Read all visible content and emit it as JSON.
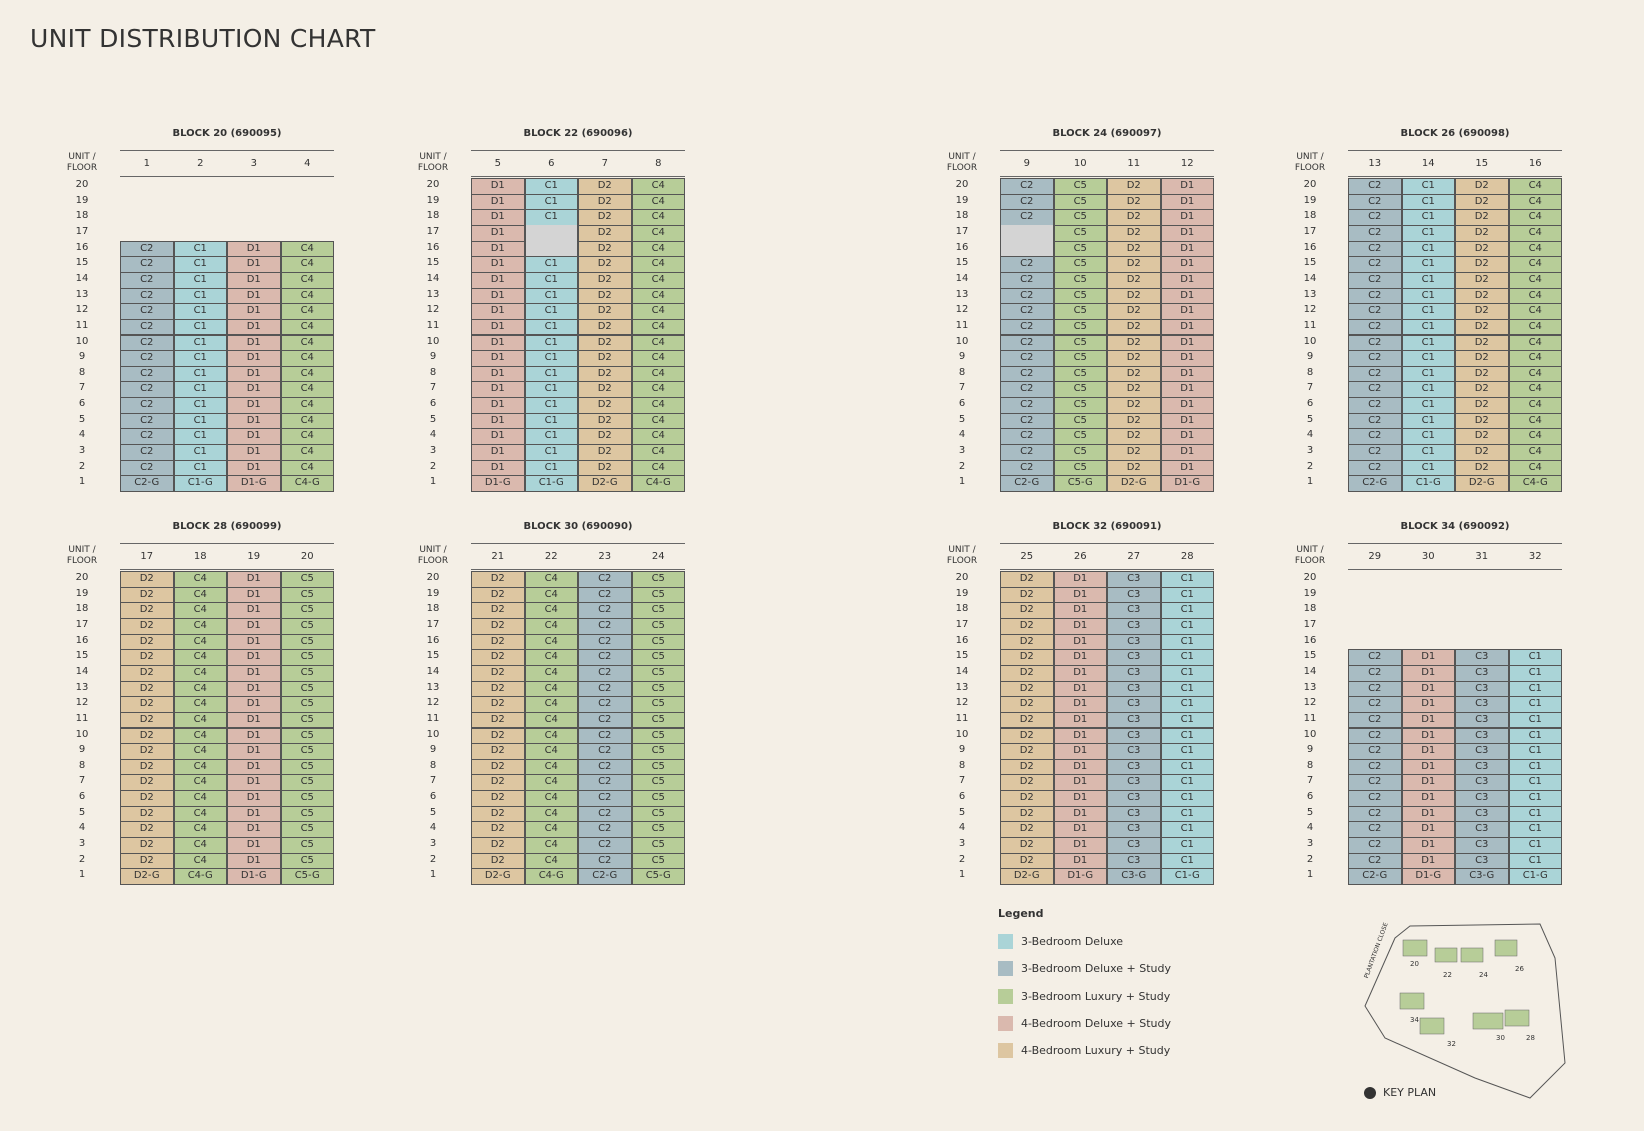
{
  "title": "UNIT DISTRIBUTION CHART",
  "unit_floor_header": "UNIT / FLOOR",
  "blocks": [
    {
      "title": "BLOCK 20 (690095)",
      "units": [
        1,
        2,
        3,
        4
      ],
      "floors": [
        20,
        19,
        18,
        17,
        16,
        15,
        14,
        13,
        12,
        11,
        10,
        9,
        8,
        7,
        6,
        5,
        4,
        3,
        2,
        1
      ],
      "rows": [
        null,
        null,
        null,
        null,
        [
          "C2",
          "C1",
          "D1",
          "C4"
        ],
        [
          "C2",
          "C1",
          "D1",
          "C4"
        ],
        [
          "C2",
          "C1",
          "D1",
          "C4"
        ],
        [
          "C2",
          "C1",
          "D1",
          "C4"
        ],
        [
          "C2",
          "C1",
          "D1",
          "C4"
        ],
        [
          "C2",
          "C1",
          "D1",
          "C4"
        ],
        [
          "C2",
          "C1",
          "D1",
          "C4"
        ],
        [
          "C2",
          "C1",
          "D1",
          "C4"
        ],
        [
          "C2",
          "C1",
          "D1",
          "C4"
        ],
        [
          "C2",
          "C1",
          "D1",
          "C4"
        ],
        [
          "C2",
          "C1",
          "D1",
          "C4"
        ],
        [
          "C2",
          "C1",
          "D1",
          "C4"
        ],
        [
          "C2",
          "C1",
          "D1",
          "C4"
        ],
        [
          "C2",
          "C1",
          "D1",
          "C4"
        ],
        [
          "C2",
          "C1",
          "D1",
          "C4"
        ],
        [
          "C2-G",
          "C1-G",
          "D1-G",
          "C4-G"
        ]
      ]
    },
    {
      "title": "BLOCK 22 (690096)",
      "units": [
        5,
        6,
        7,
        8
      ],
      "floors": [
        20,
        19,
        18,
        17,
        16,
        15,
        14,
        13,
        12,
        11,
        10,
        9,
        8,
        7,
        6,
        5,
        4,
        3,
        2,
        1
      ],
      "rows": [
        [
          "D1",
          "C1",
          "D2",
          "C4"
        ],
        [
          "D1",
          "C1",
          "D2",
          "C4"
        ],
        [
          "D1",
          "C1",
          "D2",
          "C4"
        ],
        [
          "D1",
          null,
          "D2",
          "C4"
        ],
        [
          "D1",
          null,
          "D2",
          "C4"
        ],
        [
          "D1",
          "C1",
          "D2",
          "C4"
        ],
        [
          "D1",
          "C1",
          "D2",
          "C4"
        ],
        [
          "D1",
          "C1",
          "D2",
          "C4"
        ],
        [
          "D1",
          "C1",
          "D2",
          "C4"
        ],
        [
          "D1",
          "C1",
          "D2",
          "C4"
        ],
        [
          "D1",
          "C1",
          "D2",
          "C4"
        ],
        [
          "D1",
          "C1",
          "D2",
          "C4"
        ],
        [
          "D1",
          "C1",
          "D2",
          "C4"
        ],
        [
          "D1",
          "C1",
          "D2",
          "C4"
        ],
        [
          "D1",
          "C1",
          "D2",
          "C4"
        ],
        [
          "D1",
          "C1",
          "D2",
          "C4"
        ],
        [
          "D1",
          "C1",
          "D2",
          "C4"
        ],
        [
          "D1",
          "C1",
          "D2",
          "C4"
        ],
        [
          "D1",
          "C1",
          "D2",
          "C4"
        ],
        [
          "D1-G",
          "C1-G",
          "D2-G",
          "C4-G"
        ]
      ]
    },
    {
      "title": "BLOCK 24 (690097)",
      "units": [
        9,
        10,
        11,
        12
      ],
      "floors": [
        20,
        19,
        18,
        17,
        16,
        15,
        14,
        13,
        12,
        11,
        10,
        9,
        8,
        7,
        6,
        5,
        4,
        3,
        2,
        1
      ],
      "rows": [
        [
          "C2",
          "C5",
          "D2",
          "D1"
        ],
        [
          "C2",
          "C5",
          "D2",
          "D1"
        ],
        [
          "C2",
          "C5",
          "D2",
          "D1"
        ],
        [
          null,
          "C5",
          "D2",
          "D1"
        ],
        [
          null,
          "C5",
          "D2",
          "D1"
        ],
        [
          "C2",
          "C5",
          "D2",
          "D1"
        ],
        [
          "C2",
          "C5",
          "D2",
          "D1"
        ],
        [
          "C2",
          "C5",
          "D2",
          "D1"
        ],
        [
          "C2",
          "C5",
          "D2",
          "D1"
        ],
        [
          "C2",
          "C5",
          "D2",
          "D1"
        ],
        [
          "C2",
          "C5",
          "D2",
          "D1"
        ],
        [
          "C2",
          "C5",
          "D2",
          "D1"
        ],
        [
          "C2",
          "C5",
          "D2",
          "D1"
        ],
        [
          "C2",
          "C5",
          "D2",
          "D1"
        ],
        [
          "C2",
          "C5",
          "D2",
          "D1"
        ],
        [
          "C2",
          "C5",
          "D2",
          "D1"
        ],
        [
          "C2",
          "C5",
          "D2",
          "D1"
        ],
        [
          "C2",
          "C5",
          "D2",
          "D1"
        ],
        [
          "C2",
          "C5",
          "D2",
          "D1"
        ],
        [
          "C2-G",
          "C5-G",
          "D2-G",
          "D1-G"
        ]
      ]
    },
    {
      "title": "BLOCK 26 (690098)",
      "units": [
        13,
        14,
        15,
        16
      ],
      "floors": [
        20,
        19,
        18,
        17,
        16,
        15,
        14,
        13,
        12,
        11,
        10,
        9,
        8,
        7,
        6,
        5,
        4,
        3,
        2,
        1
      ],
      "rows": [
        [
          "C2",
          "C1",
          "D2",
          "C4"
        ],
        [
          "C2",
          "C1",
          "D2",
          "C4"
        ],
        [
          "C2",
          "C1",
          "D2",
          "C4"
        ],
        [
          "C2",
          "C1",
          "D2",
          "C4"
        ],
        [
          "C2",
          "C1",
          "D2",
          "C4"
        ],
        [
          "C2",
          "C1",
          "D2",
          "C4"
        ],
        [
          "C2",
          "C1",
          "D2",
          "C4"
        ],
        [
          "C2",
          "C1",
          "D2",
          "C4"
        ],
        [
          "C2",
          "C1",
          "D2",
          "C4"
        ],
        [
          "C2",
          "C1",
          "D2",
          "C4"
        ],
        [
          "C2",
          "C1",
          "D2",
          "C4"
        ],
        [
          "C2",
          "C1",
          "D2",
          "C4"
        ],
        [
          "C2",
          "C1",
          "D2",
          "C4"
        ],
        [
          "C2",
          "C1",
          "D2",
          "C4"
        ],
        [
          "C2",
          "C1",
          "D2",
          "C4"
        ],
        [
          "C2",
          "C1",
          "D2",
          "C4"
        ],
        [
          "C2",
          "C1",
          "D2",
          "C4"
        ],
        [
          "C2",
          "C1",
          "D2",
          "C4"
        ],
        [
          "C2",
          "C1",
          "D2",
          "C4"
        ],
        [
          "C2-G",
          "C1-G",
          "D2-G",
          "C4-G"
        ]
      ]
    },
    {
      "title": "BLOCK 28 (690099)",
      "units": [
        17,
        18,
        19,
        20
      ],
      "floors": [
        20,
        19,
        18,
        17,
        16,
        15,
        14,
        13,
        12,
        11,
        10,
        9,
        8,
        7,
        6,
        5,
        4,
        3,
        2,
        1
      ],
      "rows": [
        [
          "D2",
          "C4",
          "D1",
          "C5"
        ],
        [
          "D2",
          "C4",
          "D1",
          "C5"
        ],
        [
          "D2",
          "C4",
          "D1",
          "C5"
        ],
        [
          "D2",
          "C4",
          "D1",
          "C5"
        ],
        [
          "D2",
          "C4",
          "D1",
          "C5"
        ],
        [
          "D2",
          "C4",
          "D1",
          "C5"
        ],
        [
          "D2",
          "C4",
          "D1",
          "C5"
        ],
        [
          "D2",
          "C4",
          "D1",
          "C5"
        ],
        [
          "D2",
          "C4",
          "D1",
          "C5"
        ],
        [
          "D2",
          "C4",
          "D1",
          "C5"
        ],
        [
          "D2",
          "C4",
          "D1",
          "C5"
        ],
        [
          "D2",
          "C4",
          "D1",
          "C5"
        ],
        [
          "D2",
          "C4",
          "D1",
          "C5"
        ],
        [
          "D2",
          "C4",
          "D1",
          "C5"
        ],
        [
          "D2",
          "C4",
          "D1",
          "C5"
        ],
        [
          "D2",
          "C4",
          "D1",
          "C5"
        ],
        [
          "D2",
          "C4",
          "D1",
          "C5"
        ],
        [
          "D2",
          "C4",
          "D1",
          "C5"
        ],
        [
          "D2",
          "C4",
          "D1",
          "C5"
        ],
        [
          "D2-G",
          "C4-G",
          "D1-G",
          "C5-G"
        ]
      ]
    },
    {
      "title": "BLOCK 30 (690090)",
      "units": [
        21,
        22,
        23,
        24
      ],
      "floors": [
        20,
        19,
        18,
        17,
        16,
        15,
        14,
        13,
        12,
        11,
        10,
        9,
        8,
        7,
        6,
        5,
        4,
        3,
        2,
        1
      ],
      "rows": [
        [
          "D2",
          "C4",
          "C2",
          "C5"
        ],
        [
          "D2",
          "C4",
          "C2",
          "C5"
        ],
        [
          "D2",
          "C4",
          "C2",
          "C5"
        ],
        [
          "D2",
          "C4",
          "C2",
          "C5"
        ],
        [
          "D2",
          "C4",
          "C2",
          "C5"
        ],
        [
          "D2",
          "C4",
          "C2",
          "C5"
        ],
        [
          "D2",
          "C4",
          "C2",
          "C5"
        ],
        [
          "D2",
          "C4",
          "C2",
          "C5"
        ],
        [
          "D2",
          "C4",
          "C2",
          "C5"
        ],
        [
          "D2",
          "C4",
          "C2",
          "C5"
        ],
        [
          "D2",
          "C4",
          "C2",
          "C5"
        ],
        [
          "D2",
          "C4",
          "C2",
          "C5"
        ],
        [
          "D2",
          "C4",
          "C2",
          "C5"
        ],
        [
          "D2",
          "C4",
          "C2",
          "C5"
        ],
        [
          "D2",
          "C4",
          "C2",
          "C5"
        ],
        [
          "D2",
          "C4",
          "C2",
          "C5"
        ],
        [
          "D2",
          "C4",
          "C2",
          "C5"
        ],
        [
          "D2",
          "C4",
          "C2",
          "C5"
        ],
        [
          "D2",
          "C4",
          "C2",
          "C5"
        ],
        [
          "D2-G",
          "C4-G",
          "C2-G",
          "C5-G"
        ]
      ]
    },
    {
      "title": "BLOCK 32 (690091)",
      "units": [
        25,
        26,
        27,
        28
      ],
      "floors": [
        20,
        19,
        18,
        17,
        16,
        15,
        14,
        13,
        12,
        11,
        10,
        9,
        8,
        7,
        6,
        5,
        4,
        3,
        2,
        1
      ],
      "rows": [
        [
          "D2",
          "D1",
          "C3",
          "C1"
        ],
        [
          "D2",
          "D1",
          "C3",
          "C1"
        ],
        [
          "D2",
          "D1",
          "C3",
          "C1"
        ],
        [
          "D2",
          "D1",
          "C3",
          "C1"
        ],
        [
          "D2",
          "D1",
          "C3",
          "C1"
        ],
        [
          "D2",
          "D1",
          "C3",
          "C1"
        ],
        [
          "D2",
          "D1",
          "C3",
          "C1"
        ],
        [
          "D2",
          "D1",
          "C3",
          "C1"
        ],
        [
          "D2",
          "D1",
          "C3",
          "C1"
        ],
        [
          "D2",
          "D1",
          "C3",
          "C1"
        ],
        [
          "D2",
          "D1",
          "C3",
          "C1"
        ],
        [
          "D2",
          "D1",
          "C3",
          "C1"
        ],
        [
          "D2",
          "D1",
          "C3",
          "C1"
        ],
        [
          "D2",
          "D1",
          "C3",
          "C1"
        ],
        [
          "D2",
          "D1",
          "C3",
          "C1"
        ],
        [
          "D2",
          "D1",
          "C3",
          "C1"
        ],
        [
          "D2",
          "D1",
          "C3",
          "C1"
        ],
        [
          "D2",
          "D1",
          "C3",
          "C1"
        ],
        [
          "D2",
          "D1",
          "C3",
          "C1"
        ],
        [
          "D2-G",
          "D1-G",
          "C3-G",
          "C1-G"
        ]
      ]
    },
    {
      "title": "BLOCK 34 (690092)",
      "units": [
        29,
        30,
        31,
        32
      ],
      "floors": [
        20,
        19,
        18,
        17,
        16,
        15,
        14,
        13,
        12,
        11,
        10,
        9,
        8,
        7,
        6,
        5,
        4,
        3,
        2,
        1
      ],
      "rows": [
        null,
        null,
        null,
        null,
        null,
        [
          "C2",
          "D1",
          "C3",
          "C1"
        ],
        [
          "C2",
          "D1",
          "C3",
          "C1"
        ],
        [
          "C2",
          "D1",
          "C3",
          "C1"
        ],
        [
          "C2",
          "D1",
          "C3",
          "C1"
        ],
        [
          "C2",
          "D1",
          "C3",
          "C1"
        ],
        [
          "C2",
          "D1",
          "C3",
          "C1"
        ],
        [
          "C2",
          "D1",
          "C3",
          "C1"
        ],
        [
          "C2",
          "D1",
          "C3",
          "C1"
        ],
        [
          "C2",
          "D1",
          "C3",
          "C1"
        ],
        [
          "C2",
          "D1",
          "C3",
          "C1"
        ],
        [
          "C2",
          "D1",
          "C3",
          "C1"
        ],
        [
          "C2",
          "D1",
          "C3",
          "C1"
        ],
        [
          "C2",
          "D1",
          "C3",
          "C1"
        ],
        [
          "C2",
          "D1",
          "C3",
          "C1"
        ],
        [
          "C2-G",
          "D1-G",
          "C3-G",
          "C1-G"
        ]
      ]
    }
  ],
  "legend": {
    "title": "Legend",
    "items": [
      {
        "label": "3-Bedroom Deluxe",
        "color": "#aad4d7",
        "codes": [
          "C1"
        ]
      },
      {
        "label": "3-Bedroom Deluxe + Study",
        "color": "#a8bcc3",
        "codes": [
          "C2",
          "C3"
        ]
      },
      {
        "label": "3-Bedroom Luxury + Study",
        "color": "#b7cd98",
        "codes": [
          "C4",
          "C5"
        ]
      },
      {
        "label": "4-Bedroom Deluxe + Study",
        "color": "#dab9ae",
        "codes": [
          "D1"
        ]
      },
      {
        "label": "4-Bedroom Luxury + Study",
        "color": "#ddc6a1",
        "codes": [
          "D2"
        ]
      }
    ]
  },
  "key_plan": {
    "title": "KEY PLAN",
    "road": "PLANTATION CLOSE",
    "blocks": [
      20,
      22,
      24,
      26,
      34,
      32,
      30,
      28
    ]
  }
}
